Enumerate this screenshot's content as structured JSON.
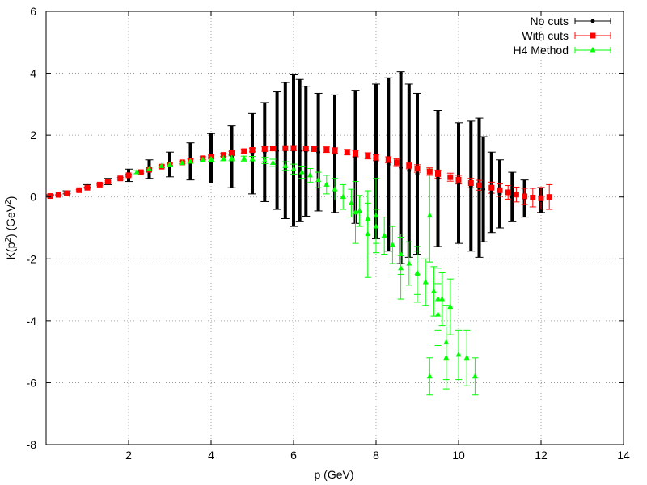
{
  "chart_data": {
    "type": "scatter",
    "xlabel": "p (GeV)",
    "ylabel": {
      "prefix": "K(p",
      "sup1": "2",
      "mid": ") (GeV",
      "sup2": "2",
      "suffix": ")"
    },
    "xlim": [
      0,
      14
    ],
    "ylim": [
      -8,
      6
    ],
    "grid": true,
    "legend_position": "top-right",
    "xticks": [
      2,
      4,
      6,
      8,
      10,
      12,
      14
    ],
    "yticks": [
      -8,
      -6,
      -4,
      -2,
      0,
      2,
      4,
      6
    ],
    "series": [
      {
        "name": "No cuts",
        "color": "#000000",
        "marker": "circle",
        "x": [
          0.1,
          0.5,
          1.0,
          1.5,
          2.0,
          2.5,
          3.0,
          3.5,
          4.0,
          4.5,
          5.0,
          5.3,
          5.6,
          5.8,
          6.0,
          6.15,
          6.3,
          6.6,
          7.0,
          7.5,
          8.0,
          8.3,
          8.6,
          8.8,
          9.0,
          9.5,
          10.0,
          10.3,
          10.5,
          10.6,
          10.8,
          11.0,
          11.3,
          11.6,
          12.0
        ],
        "y": [
          0.05,
          0.15,
          0.35,
          0.5,
          0.7,
          0.9,
          1.05,
          1.15,
          1.25,
          1.3,
          1.4,
          1.45,
          1.5,
          1.5,
          1.5,
          1.5,
          1.48,
          1.45,
          1.4,
          1.3,
          1.15,
          1.05,
          0.95,
          0.85,
          0.75,
          0.6,
          0.45,
          0.35,
          0.3,
          0.25,
          0.15,
          0.1,
          0.0,
          -0.05,
          -0.1
        ],
        "yerr": [
          0.02,
          0.05,
          0.05,
          0.1,
          0.2,
          0.3,
          0.4,
          0.6,
          0.8,
          1.0,
          1.3,
          1.6,
          1.9,
          2.2,
          2.45,
          2.3,
          2.1,
          1.9,
          1.9,
          2.15,
          2.5,
          2.8,
          3.1,
          2.8,
          2.6,
          2.2,
          1.95,
          2.1,
          2.25,
          1.7,
          1.3,
          1.1,
          0.8,
          0.6,
          0.4
        ]
      },
      {
        "name": "With cuts",
        "color": "#ff0000",
        "marker": "square",
        "x": [
          0.1,
          0.3,
          0.5,
          0.8,
          1.0,
          1.3,
          1.5,
          1.8,
          2.0,
          2.3,
          2.5,
          2.8,
          3.0,
          3.3,
          3.5,
          3.8,
          4.0,
          4.3,
          4.5,
          4.8,
          5.0,
          5.3,
          5.5,
          5.8,
          6.0,
          6.3,
          6.5,
          6.8,
          7.0,
          7.3,
          7.5,
          7.8,
          8.0,
          8.3,
          8.5,
          8.8,
          9.0,
          9.3,
          9.5,
          9.8,
          10.0,
          10.3,
          10.5,
          10.8,
          11.0,
          11.2,
          11.4,
          11.6,
          11.8,
          12.0,
          12.2
        ],
        "y": [
          0.03,
          0.07,
          0.12,
          0.22,
          0.3,
          0.4,
          0.5,
          0.6,
          0.7,
          0.8,
          0.88,
          0.98,
          1.05,
          1.12,
          1.18,
          1.25,
          1.3,
          1.36,
          1.42,
          1.48,
          1.52,
          1.55,
          1.57,
          1.58,
          1.58,
          1.57,
          1.55,
          1.53,
          1.5,
          1.45,
          1.4,
          1.33,
          1.27,
          1.2,
          1.12,
          1.02,
          0.92,
          0.82,
          0.74,
          0.64,
          0.56,
          0.45,
          0.38,
          0.3,
          0.22,
          0.15,
          0.08,
          0.02,
          -0.02,
          -0.04,
          0.0
        ],
        "yerr": [
          0.01,
          0.01,
          0.01,
          0.02,
          0.02,
          0.02,
          0.02,
          0.03,
          0.03,
          0.03,
          0.03,
          0.04,
          0.04,
          0.04,
          0.05,
          0.05,
          0.05,
          0.05,
          0.06,
          0.06,
          0.06,
          0.07,
          0.07,
          0.07,
          0.08,
          0.08,
          0.08,
          0.09,
          0.09,
          0.09,
          0.1,
          0.1,
          0.1,
          0.1,
          0.11,
          0.11,
          0.12,
          0.12,
          0.13,
          0.13,
          0.14,
          0.15,
          0.16,
          0.18,
          0.2,
          0.22,
          0.24,
          0.26,
          0.3,
          0.35,
          0.4
        ]
      },
      {
        "name": "H4 Method",
        "color": "#00ff00",
        "marker": "triangle",
        "x": [
          2.2,
          2.5,
          2.8,
          3.0,
          3.3,
          3.5,
          3.8,
          4.0,
          4.3,
          4.5,
          4.8,
          5.0,
          5.3,
          5.5,
          5.8,
          6.0,
          6.2,
          6.4,
          6.6,
          6.8,
          7.0,
          7.2,
          7.4,
          7.6,
          7.8,
          8.0,
          8.2,
          8.4,
          8.6,
          8.8,
          9.0,
          9.2,
          9.4,
          9.6,
          9.8,
          7.5,
          7.8,
          8.0,
          8.6,
          9.0,
          9.3,
          9.5,
          9.7,
          9.3,
          9.7,
          10.0,
          10.2,
          10.4,
          9.5
        ],
        "y": [
          0.8,
          0.9,
          1.0,
          1.05,
          1.1,
          1.15,
          1.2,
          1.22,
          1.24,
          1.25,
          1.24,
          1.22,
          1.18,
          1.1,
          1.0,
          0.9,
          0.8,
          0.7,
          0.55,
          0.4,
          0.25,
          0.0,
          -0.2,
          -0.45,
          -0.7,
          -0.95,
          -1.25,
          -1.55,
          -1.85,
          -2.15,
          -2.45,
          -2.75,
          -3.05,
          -3.3,
          -3.55,
          -0.5,
          -1.2,
          -0.6,
          -2.3,
          -2.5,
          -0.6,
          -3.3,
          -4.7,
          -5.8,
          -5.2,
          -5.1,
          -5.2,
          -5.8,
          -3.8
        ],
        "yerr": [
          0.05,
          0.05,
          0.05,
          0.05,
          0.06,
          0.06,
          0.06,
          0.07,
          0.07,
          0.08,
          0.08,
          0.09,
          0.1,
          0.12,
          0.14,
          0.16,
          0.2,
          0.22,
          0.25,
          0.3,
          0.35,
          0.4,
          0.45,
          0.5,
          0.5,
          0.55,
          0.6,
          0.6,
          0.65,
          0.7,
          0.7,
          0.75,
          0.8,
          0.85,
          0.9,
          1.0,
          1.4,
          1.2,
          1.0,
          0.9,
          1.5,
          1.0,
          1.2,
          0.6,
          1.0,
          0.8,
          0.9,
          0.6,
          1.0
        ]
      }
    ]
  }
}
